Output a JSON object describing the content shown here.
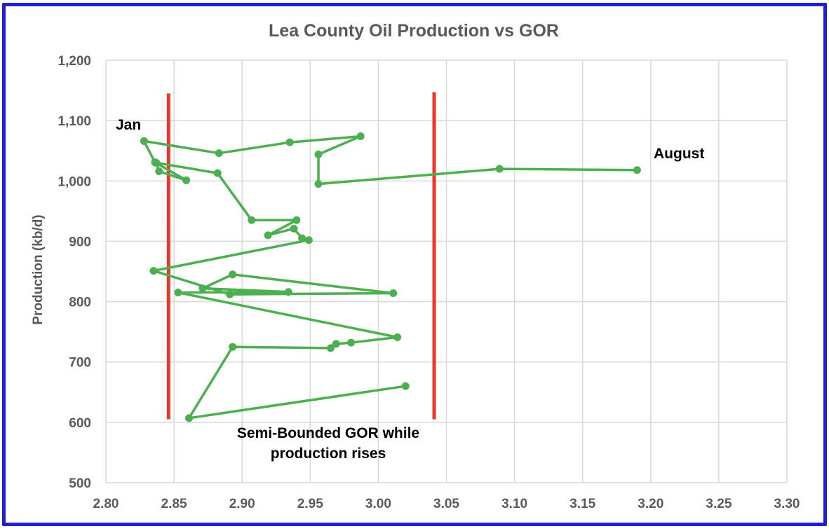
{
  "chart_data": {
    "type": "scatter",
    "title": "Lea County Oil Production vs GOR",
    "xlabel": "",
    "ylabel": "Production (kb/d)",
    "xlim": [
      2.8,
      3.3
    ],
    "ylim": [
      500,
      1200
    ],
    "x_ticks": [
      "2.80",
      "2.85",
      "2.90",
      "2.95",
      "3.00",
      "3.05",
      "3.10",
      "3.15",
      "3.20",
      "3.25",
      "3.30"
    ],
    "y_ticks": [
      "500",
      "600",
      "700",
      "800",
      "900",
      "1,000",
      "1,100",
      "1,200"
    ],
    "grid": true,
    "legend": "none",
    "line_color": "#4caf50",
    "series": [
      {
        "x": [
          3.02,
          2.861,
          2.893,
          2.965,
          2.969,
          2.98,
          3.014,
          2.853,
          2.934,
          2.871,
          2.893,
          3.011,
          2.891,
          2.835,
          2.949,
          2.944,
          2.938,
          2.919,
          2.94,
          2.907,
          2.882,
          2.837,
          2.839,
          2.859,
          2.836,
          2.828,
          2.883,
          2.935,
          2.987,
          2.956,
          2.956,
          3.089,
          3.19
        ],
        "y": [
          660,
          607,
          725,
          723,
          730,
          732,
          741,
          815,
          816,
          822,
          845,
          814,
          812,
          851,
          902,
          905,
          921,
          910,
          935,
          935,
          1013,
          1030,
          1016,
          1001,
          1031,
          1066,
          1046,
          1064,
          1074,
          1044,
          995,
          1020,
          1018
        ]
      }
    ],
    "reference_lines": {
      "color": "#e8372b",
      "lines": [
        {
          "x": 2.846,
          "y_range": [
            605,
            1145
          ]
        },
        {
          "x": 3.041,
          "y_range": [
            605,
            1147
          ]
        }
      ]
    },
    "annotations": {
      "jan": "Jan",
      "august": "August",
      "bounded_line1": "Semi-Bounded GOR while",
      "bounded_line2": "production rises"
    }
  }
}
